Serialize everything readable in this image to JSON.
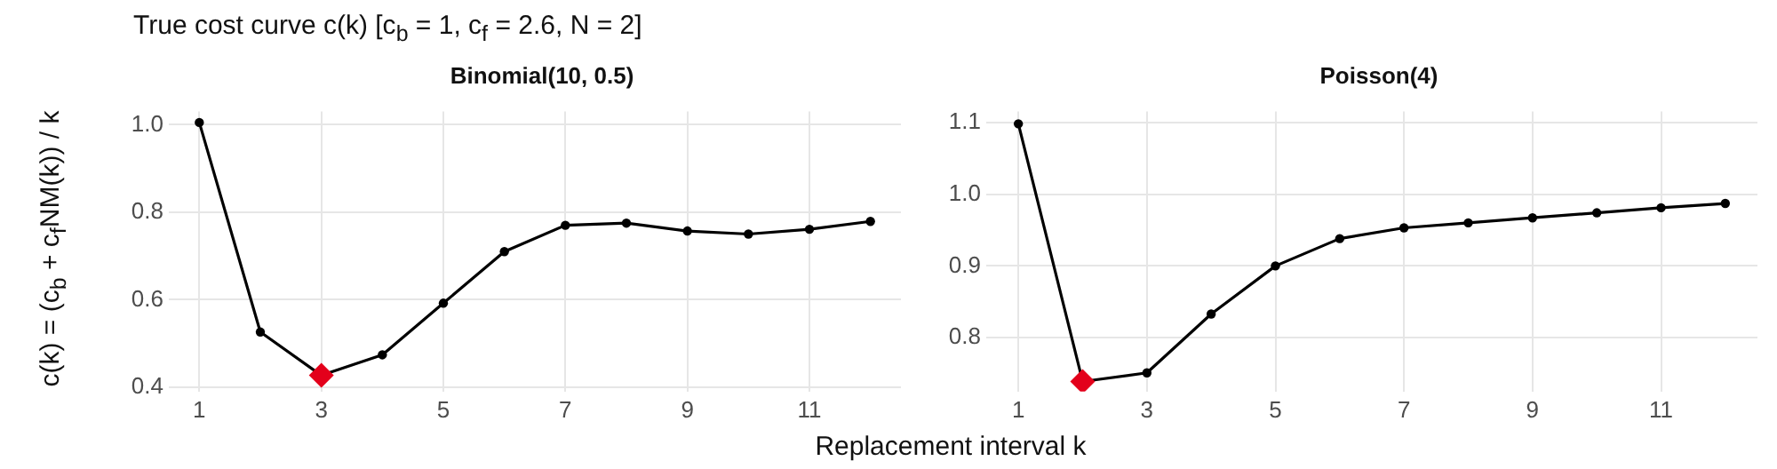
{
  "chart_data": [
    {
      "type": "line",
      "title": "True cost curve c(k)  [c$_{b}$ = 1, c$_{f}$ = 2.6, N = 2]",
      "subtitle": "Binomial(10, 0.5)",
      "xlabel": "Replacement interval k",
      "ylabel": "c(k) = (c$_{b}$ + c$_{f}$NM(k)) / k",
      "xlim": [
        0.5,
        12.5
      ],
      "xticks": [
        1,
        3,
        5,
        7,
        9,
        11
      ],
      "ylim": [
        0.39,
        1.03
      ],
      "yticks": [
        0.4,
        0.6,
        0.8,
        {
          "value": 1,
          "label": "1.0"
        }
      ],
      "grid": true,
      "legend": false,
      "series": [
        {
          "type": "line",
          "color": "#000000",
          "marker": "circle",
          "x": [
            1,
            2,
            3,
            4,
            5,
            6,
            7,
            8,
            9,
            10,
            11,
            12
          ],
          "values": [
            1.005,
            0.526,
            0.427,
            0.474,
            0.592,
            0.71,
            0.77,
            0.775,
            0.757,
            0.75,
            0.761,
            0.779
          ]
        },
        {
          "type": "scatter",
          "color": "#e3001b",
          "marker": "diamond",
          "x": [
            3
          ],
          "values": [
            0.427
          ]
        }
      ]
    },
    {
      "type": "line",
      "subtitle": "Poisson(4)",
      "xlim": [
        0.5,
        12.5
      ],
      "xticks": [
        1,
        3,
        5,
        7,
        9,
        11
      ],
      "ylim": [
        0.725,
        1.115
      ],
      "yticks": [
        0.8,
        0.9,
        {
          "value": 1,
          "label": "1.0"
        },
        1.1
      ],
      "grid": true,
      "legend": false,
      "series": [
        {
          "type": "line",
          "color": "#000000",
          "marker": "circle",
          "x": [
            1,
            2,
            3,
            4,
            5,
            6,
            7,
            8,
            9,
            10,
            11,
            12
          ],
          "values": [
            1.098,
            0.739,
            0.751,
            0.833,
            0.9,
            0.938,
            0.953,
            0.96,
            0.967,
            0.974,
            0.981,
            0.987
          ]
        },
        {
          "type": "scatter",
          "color": "#e3001b",
          "marker": "diamond",
          "x": [
            2
          ],
          "values": [
            0.739
          ]
        }
      ]
    }
  ]
}
